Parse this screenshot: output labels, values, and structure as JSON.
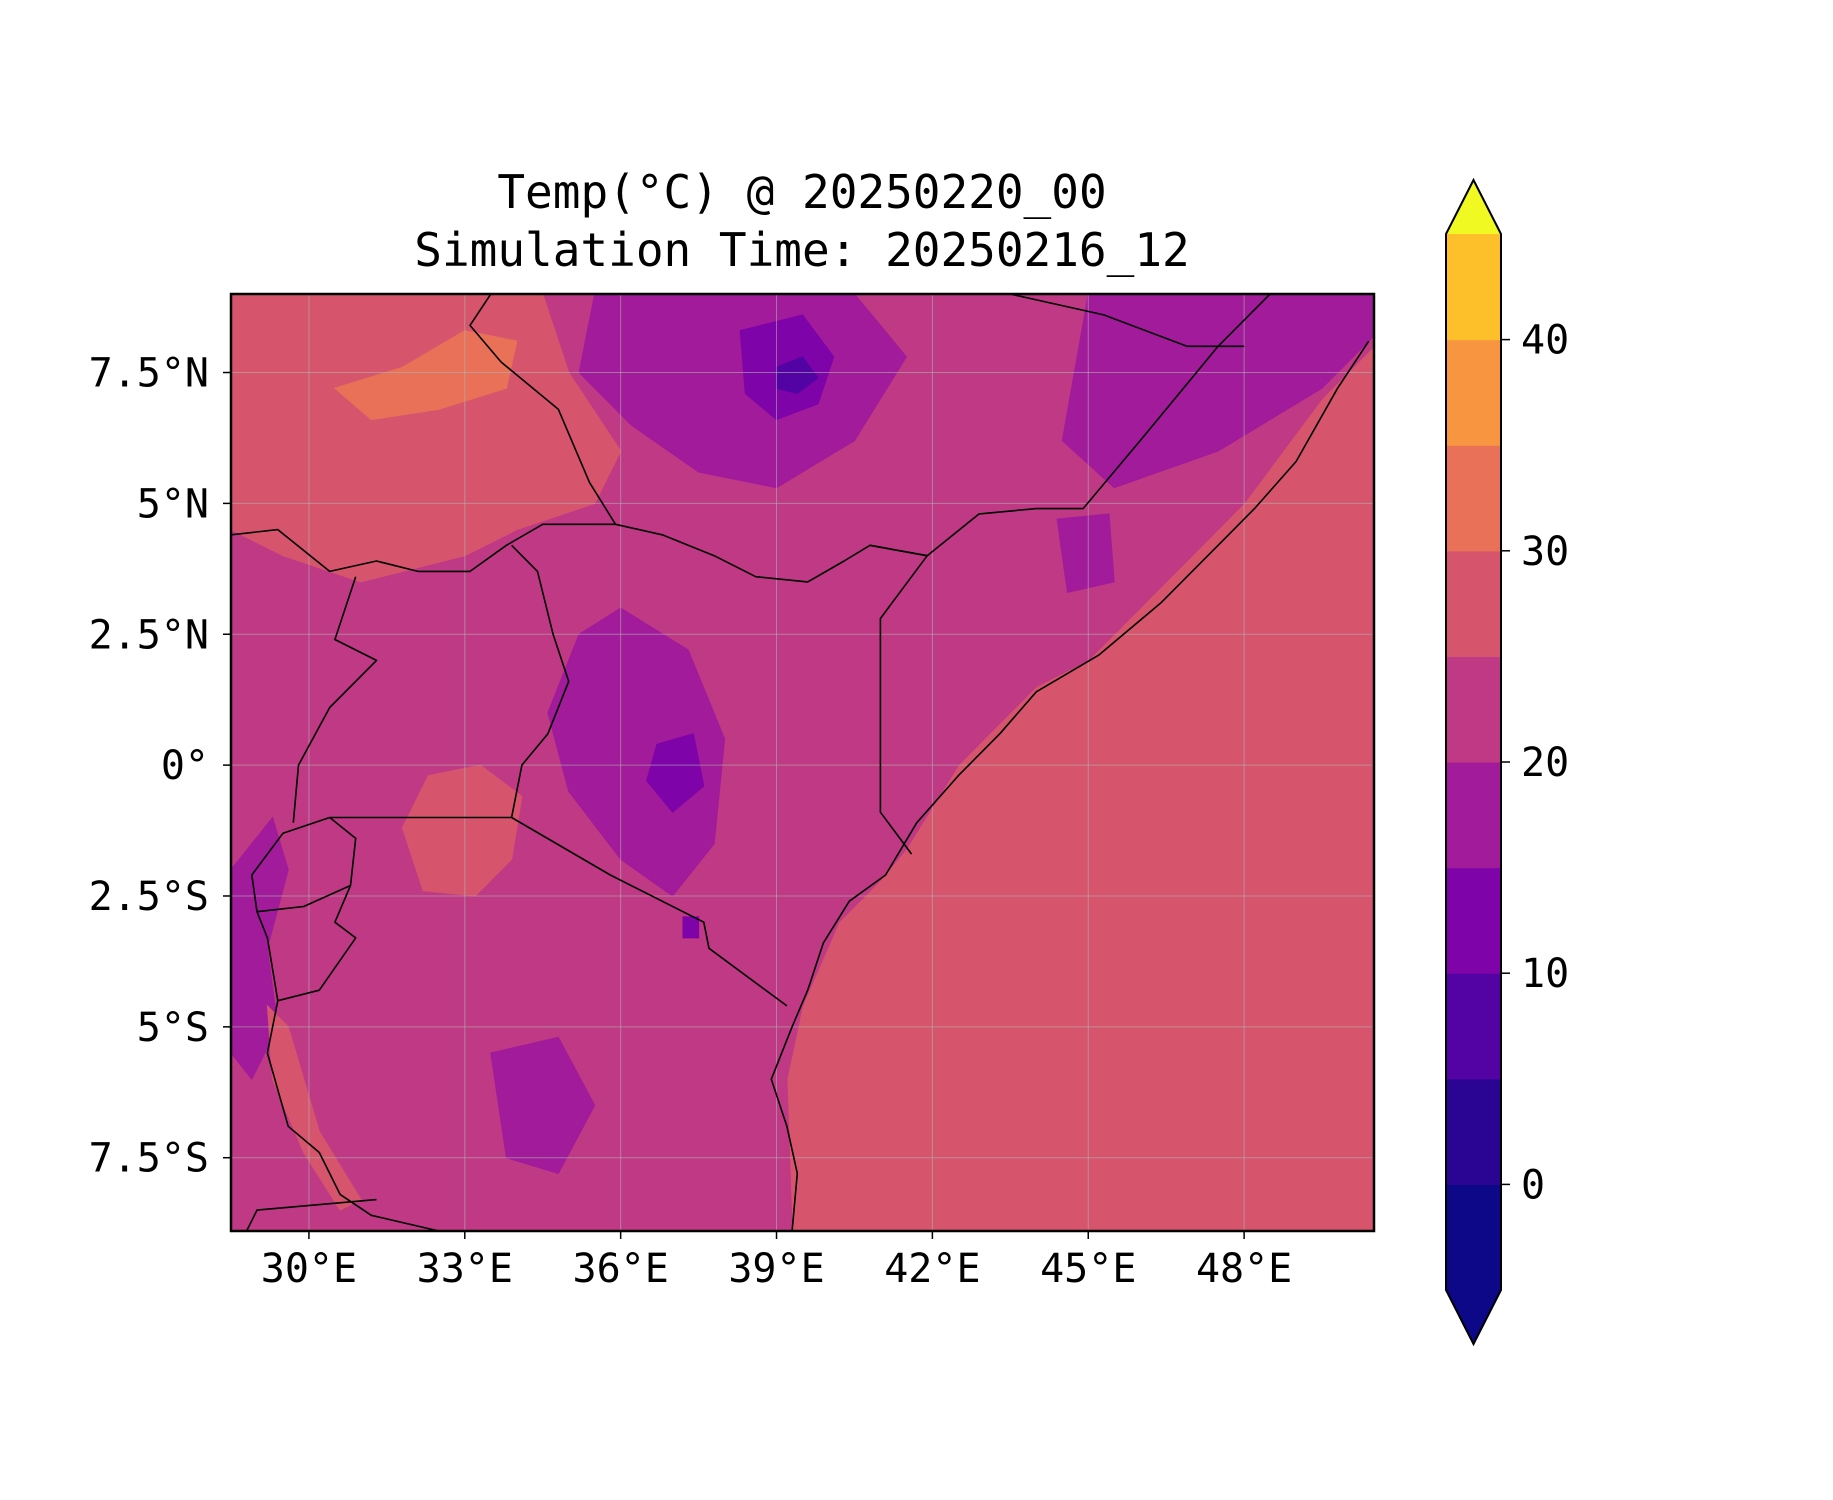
{
  "chart_data": {
    "type": "contour-map",
    "title": [
      "Temp(°C) @ 20250220_00",
      "Simulation Time: 20250216_12"
    ],
    "xlabel": "",
    "ylabel": "",
    "xlim": [
      28.5,
      50.5
    ],
    "ylim": [
      -8.9,
      9.0
    ],
    "x_ticks": [
      {
        "value": 30,
        "label": "30°E"
      },
      {
        "value": 33,
        "label": "33°E"
      },
      {
        "value": 36,
        "label": "36°E"
      },
      {
        "value": 39,
        "label": "39°E"
      },
      {
        "value": 42,
        "label": "42°E"
      },
      {
        "value": 45,
        "label": "45°E"
      },
      {
        "value": 48,
        "label": "48°E"
      }
    ],
    "y_ticks": [
      {
        "value": 7.5,
        "label": "7.5°N"
      },
      {
        "value": 5,
        "label": "5°N"
      },
      {
        "value": 2.5,
        "label": "2.5°N"
      },
      {
        "value": 0,
        "label": "0°"
      },
      {
        "value": -2.5,
        "label": "2.5°S"
      },
      {
        "value": -5,
        "label": "5°S"
      },
      {
        "value": -7.5,
        "label": "7.5°S"
      }
    ],
    "grid": true,
    "colorbar": {
      "placement": "right",
      "extend": "both",
      "levels": [
        -5,
        0,
        5,
        10,
        15,
        20,
        25,
        30,
        35,
        40,
        45
      ],
      "ticks": [
        {
          "value": 0,
          "label": "0"
        },
        {
          "value": 10,
          "label": "10"
        },
        {
          "value": 20,
          "label": "20"
        },
        {
          "value": 30,
          "label": "30"
        },
        {
          "value": 40,
          "label": "40"
        }
      ],
      "colors": [
        "#0d0887",
        "#2a0593",
        "#5302a3",
        "#7e03a8",
        "#a11b9b",
        "#bf3984",
        "#d6556d",
        "#e97158",
        "#f89540",
        "#fdbf2a",
        "#f3e528"
      ],
      "under_color": "#0d0887",
      "over_color": "#f0f921"
    },
    "colormap": "plasma",
    "background_temp_c": 27,
    "regions": [
      {
        "name": "ocean",
        "temp_c": 27,
        "points": [
          [
            40.5,
            -8.9
          ],
          [
            50.5,
            -8.9
          ],
          [
            50.5,
            8.0
          ],
          [
            49.5,
            7.0
          ],
          [
            48,
            5
          ],
          [
            47,
            4
          ],
          [
            45,
            2
          ],
          [
            44,
            1.5
          ],
          [
            42.5,
            0
          ],
          [
            41.5,
            -1.6
          ],
          [
            41,
            -2.2
          ],
          [
            40.2,
            -3
          ],
          [
            39.5,
            -4.6
          ],
          [
            39.2,
            -6
          ],
          [
            39.3,
            -8.9
          ]
        ]
      },
      {
        "name": "mainland-base",
        "temp_c": 22,
        "points": [
          [
            28.5,
            -8.9
          ],
          [
            39.3,
            -8.9
          ],
          [
            39.2,
            -6
          ],
          [
            39.5,
            -4.6
          ],
          [
            40.2,
            -3
          ],
          [
            41,
            -2.2
          ],
          [
            41.5,
            -1.6
          ],
          [
            42.5,
            0
          ],
          [
            44,
            1.5
          ],
          [
            45,
            2
          ],
          [
            47,
            4
          ],
          [
            48,
            5
          ],
          [
            49.5,
            7
          ],
          [
            50.5,
            8
          ],
          [
            50.5,
            9
          ],
          [
            28.5,
            9
          ]
        ]
      },
      {
        "name": "sudan-hot-plain",
        "temp_c": 27,
        "points": [
          [
            28.5,
            9
          ],
          [
            34.5,
            9
          ],
          [
            35,
            7.5
          ],
          [
            36,
            6
          ],
          [
            35.5,
            5
          ],
          [
            34,
            4.5
          ],
          [
            33,
            4
          ],
          [
            31,
            3.5
          ],
          [
            29.5,
            4
          ],
          [
            28.5,
            4.5
          ]
        ]
      },
      {
        "name": "sudan-very-hot",
        "temp_c": 32,
        "points": [
          [
            30.5,
            7.2
          ],
          [
            31.8,
            7.6
          ],
          [
            33,
            8.3
          ],
          [
            34,
            8.1
          ],
          [
            33.8,
            7.2
          ],
          [
            32.5,
            6.8
          ],
          [
            31.2,
            6.6
          ]
        ]
      },
      {
        "name": "ethiopia-highlands",
        "temp_c": 17,
        "points": [
          [
            35.5,
            9
          ],
          [
            40.5,
            9
          ],
          [
            41.5,
            7.8
          ],
          [
            40.5,
            6.2
          ],
          [
            39,
            5.3
          ],
          [
            37.5,
            5.6
          ],
          [
            36.2,
            6.5
          ],
          [
            35.2,
            7.5
          ]
        ]
      },
      {
        "name": "ethiopia-cold-core",
        "temp_c": 12,
        "points": [
          [
            38.3,
            8.3
          ],
          [
            39.5,
            8.6
          ],
          [
            40.1,
            7.8
          ],
          [
            39.8,
            6.9
          ],
          [
            39,
            6.6
          ],
          [
            38.4,
            7.1
          ]
        ]
      },
      {
        "name": "ethiopia-coldest",
        "temp_c": 7,
        "points": [
          [
            39,
            7.6
          ],
          [
            39.5,
            7.8
          ],
          [
            39.8,
            7.4
          ],
          [
            39.4,
            7.1
          ],
          [
            39,
            7.2
          ]
        ]
      },
      {
        "name": "somali-north-cool",
        "temp_c": 17,
        "points": [
          [
            45,
            9
          ],
          [
            50.5,
            9
          ],
          [
            50.5,
            8.2
          ],
          [
            49.5,
            7.2
          ],
          [
            47.5,
            6
          ],
          [
            45.5,
            5.3
          ],
          [
            44.5,
            6.2
          ]
        ]
      },
      {
        "name": "somali-south-interior",
        "temp_c": 17,
        "points": [
          [
            44.4,
            4.7
          ],
          [
            45.4,
            4.8
          ],
          [
            45.5,
            3.5
          ],
          [
            44.6,
            3.3
          ]
        ]
      },
      {
        "name": "kenya-highlands",
        "temp_c": 17,
        "points": [
          [
            35.2,
            2.5
          ],
          [
            36,
            3
          ],
          [
            37.3,
            2.2
          ],
          [
            38,
            0.5
          ],
          [
            37.8,
            -1.5
          ],
          [
            37,
            -2.5
          ],
          [
            36,
            -1.8
          ],
          [
            35,
            -0.5
          ],
          [
            34.6,
            1
          ]
        ]
      },
      {
        "name": "kenya-cold-core",
        "temp_c": 12,
        "points": [
          [
            36.7,
            0.4
          ],
          [
            37.4,
            0.6
          ],
          [
            37.6,
            -0.4
          ],
          [
            37,
            -0.9
          ],
          [
            36.5,
            -0.3
          ]
        ]
      },
      {
        "name": "lake-victoria",
        "temp_c": 27,
        "points": [
          [
            32.3,
            -0.2
          ],
          [
            33.3,
            0
          ],
          [
            34.1,
            -0.6
          ],
          [
            33.9,
            -1.8
          ],
          [
            33.2,
            -2.5
          ],
          [
            32.2,
            -2.4
          ],
          [
            31.8,
            -1.2
          ]
        ]
      },
      {
        "name": "western-rift-cool",
        "temp_c": 17,
        "points": [
          [
            28.5,
            -2
          ],
          [
            29.3,
            -1
          ],
          [
            29.6,
            -2
          ],
          [
            29.2,
            -3.5
          ],
          [
            29.4,
            -5
          ],
          [
            28.9,
            -6
          ],
          [
            28.5,
            -5.5
          ]
        ]
      },
      {
        "name": "tanzania-cool-patch",
        "temp_c": 17,
        "points": [
          [
            33.5,
            -5.5
          ],
          [
            34.8,
            -5.2
          ],
          [
            35.5,
            -6.5
          ],
          [
            34.8,
            -7.8
          ],
          [
            33.8,
            -7.5
          ]
        ]
      },
      {
        "name": "kilimanjaro-cold",
        "temp_c": 12,
        "points": [
          [
            37.2,
            -2.9
          ],
          [
            37.5,
            -2.9
          ],
          [
            37.5,
            -3.3
          ],
          [
            37.2,
            -3.3
          ]
        ]
      },
      {
        "name": "lake-tanganyika-warm",
        "temp_c": 27,
        "points": [
          [
            29.2,
            -4.6
          ],
          [
            29.6,
            -5
          ],
          [
            30.2,
            -7
          ],
          [
            31,
            -8.3
          ],
          [
            30.6,
            -8.5
          ],
          [
            29.9,
            -7.4
          ],
          [
            29.3,
            -6
          ]
        ]
      }
    ],
    "boundaries": [
      {
        "name": "coastline",
        "points": [
          [
            50.4,
            8.1
          ],
          [
            49.8,
            7.2
          ],
          [
            49,
            5.8
          ],
          [
            48.2,
            4.9
          ],
          [
            47.5,
            4.2
          ],
          [
            46.4,
            3.1
          ],
          [
            45.2,
            2.1
          ],
          [
            44,
            1.4
          ],
          [
            43.3,
            0.6
          ],
          [
            42.5,
            -0.2
          ],
          [
            41.7,
            -1.1
          ],
          [
            41.1,
            -2.1
          ],
          [
            40.4,
            -2.6
          ],
          [
            39.9,
            -3.4
          ],
          [
            39.6,
            -4.3
          ],
          [
            39.3,
            -5
          ],
          [
            38.9,
            -6
          ],
          [
            39.2,
            -6.9
          ],
          [
            39.4,
            -7.8
          ],
          [
            39.3,
            -8.9
          ]
        ]
      },
      {
        "name": "border-ethiopia-somalia",
        "points": [
          [
            40.8,
            4.2
          ],
          [
            41.9,
            4.0
          ],
          [
            42.9,
            4.8
          ],
          [
            44,
            4.9
          ],
          [
            44.9,
            4.9
          ],
          [
            46,
            6.2
          ],
          [
            47.5,
            8.0
          ],
          [
            48.5,
            9.0
          ]
        ]
      },
      {
        "name": "border-ethiopia-somaliland",
        "points": [
          [
            43.5,
            9.0
          ],
          [
            45.3,
            8.6
          ],
          [
            46.9,
            8.0
          ],
          [
            48,
            8.0
          ]
        ]
      },
      {
        "name": "border-kenya-somalia",
        "points": [
          [
            41.9,
            4.0
          ],
          [
            41,
            2.8
          ],
          [
            41,
            -0.9
          ],
          [
            41.6,
            -1.7
          ]
        ]
      },
      {
        "name": "border-kenya-ethiopia",
        "points": [
          [
            35.9,
            4.6
          ],
          [
            36.8,
            4.4
          ],
          [
            37.8,
            4.0
          ],
          [
            38.6,
            3.6
          ],
          [
            39.6,
            3.5
          ],
          [
            40.3,
            3.9
          ],
          [
            40.8,
            4.2
          ],
          [
            41.9,
            4.0
          ]
        ]
      },
      {
        "name": "border-ethiopia-southsudan",
        "points": [
          [
            33.5,
            9.0
          ],
          [
            33.1,
            8.4
          ],
          [
            33.7,
            7.7
          ],
          [
            34.8,
            6.8
          ],
          [
            35.4,
            5.4
          ],
          [
            35.9,
            4.6
          ]
        ]
      },
      {
        "name": "border-southsudan-uganda",
        "points": [
          [
            28.5,
            4.4
          ],
          [
            29.4,
            4.5
          ],
          [
            30.4,
            3.7
          ],
          [
            31.3,
            3.9
          ],
          [
            32.1,
            3.7
          ],
          [
            33.1,
            3.7
          ],
          [
            33.8,
            4.2
          ],
          [
            34.5,
            4.6
          ],
          [
            35.9,
            4.6
          ]
        ]
      },
      {
        "name": "border-uganda-kenya",
        "points": [
          [
            33.9,
            4.2
          ],
          [
            34.4,
            3.7
          ],
          [
            34.7,
            2.5
          ],
          [
            35.0,
            1.6
          ],
          [
            34.6,
            0.6
          ],
          [
            34.1,
            0.0
          ],
          [
            33.9,
            -1.0
          ]
        ]
      },
      {
        "name": "border-uganda-drc",
        "points": [
          [
            30.9,
            3.6
          ],
          [
            30.5,
            2.4
          ],
          [
            31.3,
            2.0
          ],
          [
            30.4,
            1.1
          ],
          [
            29.8,
            0.0
          ],
          [
            29.7,
            -1.1
          ]
        ]
      },
      {
        "name": "border-tanzania-kenya",
        "points": [
          [
            33.9,
            -1.0
          ],
          [
            35.8,
            -2.1
          ],
          [
            37.6,
            -3.0
          ],
          [
            37.7,
            -3.5
          ],
          [
            39.2,
            -4.6
          ]
        ]
      },
      {
        "name": "border-tanzania-uganda",
        "points": [
          [
            30.4,
            -1.0
          ],
          [
            33.9,
            -1.0
          ]
        ]
      },
      {
        "name": "border-rwanda",
        "points": [
          [
            30.4,
            -1.0
          ],
          [
            30.9,
            -1.4
          ],
          [
            30.8,
            -2.3
          ],
          [
            29.9,
            -2.7
          ],
          [
            29.0,
            -2.8
          ],
          [
            28.9,
            -2.1
          ],
          [
            29.5,
            -1.3
          ],
          [
            30.4,
            -1.0
          ]
        ]
      },
      {
        "name": "border-burundi",
        "points": [
          [
            30.8,
            -2.3
          ],
          [
            30.5,
            -3.0
          ],
          [
            30.9,
            -3.3
          ],
          [
            30.2,
            -4.3
          ],
          [
            29.4,
            -4.5
          ],
          [
            29.2,
            -3.3
          ],
          [
            29.0,
            -2.8
          ]
        ]
      },
      {
        "name": "border-tanzania-drc-tanganyika",
        "points": [
          [
            29.4,
            -4.5
          ],
          [
            29.2,
            -5.5
          ],
          [
            29.4,
            -6.2
          ],
          [
            29.6,
            -6.9
          ],
          [
            30.2,
            -7.4
          ],
          [
            30.6,
            -8.2
          ],
          [
            31.2,
            -8.6
          ],
          [
            32.5,
            -8.9
          ]
        ]
      },
      {
        "name": "border-zambia",
        "points": [
          [
            28.8,
            -8.9
          ],
          [
            29.0,
            -8.5
          ],
          [
            31.3,
            -8.3
          ]
        ]
      }
    ]
  }
}
